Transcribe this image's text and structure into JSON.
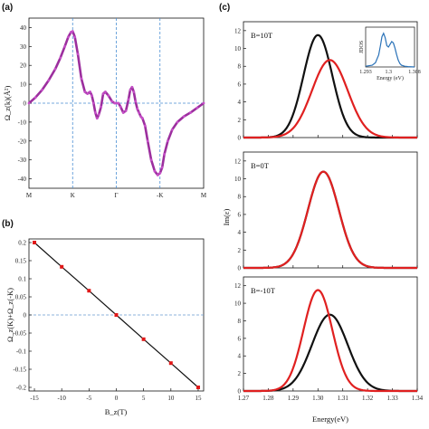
{
  "panels": {
    "a": "(a)",
    "b": "(b)",
    "c": "(c)"
  },
  "chart_data": [
    {
      "id": "a",
      "type": "line",
      "ylabel": "Ω_z(k)(Å²)",
      "ylim": [
        -45,
        45
      ],
      "yticks": [
        -40,
        -30,
        -20,
        -10,
        0,
        10,
        20,
        30,
        40
      ],
      "x_ticks": [
        "M",
        "K",
        "Γ",
        "-K",
        "M"
      ],
      "x_tick_positions": [
        0,
        1,
        2,
        3,
        4
      ],
      "vlines_at": [
        1,
        2,
        3
      ],
      "hline_at": 0,
      "colors": {
        "line": "#9c2f9e",
        "markers": "#c64fc8",
        "guides": "#4a8fd4"
      },
      "series": [
        {
          "x": [
            0.0,
            0.15,
            0.3,
            0.45,
            0.6,
            0.72,
            0.82,
            0.9,
            0.96,
            1.0,
            1.05,
            1.12,
            1.2,
            1.28,
            1.34,
            1.4,
            1.44,
            1.48,
            1.52,
            1.56,
            1.6,
            1.65,
            1.7,
            1.75,
            1.82,
            1.9,
            1.96,
            2.0,
            2.05,
            2.1,
            2.16,
            2.22,
            2.28,
            2.32,
            2.36,
            2.4,
            2.44,
            2.48,
            2.52,
            2.56,
            2.6,
            2.66,
            2.72,
            2.8,
            2.88,
            2.95,
            3.0,
            3.05,
            3.1,
            3.18,
            3.28,
            3.4,
            3.55,
            3.7,
            3.85,
            4.0
          ],
          "y": [
            0,
            3,
            7,
            12,
            18,
            24,
            30,
            35,
            37.5,
            38,
            35,
            26,
            13,
            6,
            5,
            6,
            4,
            0,
            -5,
            -8,
            -6,
            -2,
            5,
            6,
            4,
            1,
            0,
            0,
            0,
            -2,
            -5,
            -4,
            2,
            7,
            8.5,
            6,
            1,
            -3,
            -5,
            -7,
            -8,
            -12,
            -20,
            -30,
            -36,
            -38,
            -37,
            -34,
            -27,
            -20,
            -14,
            -10,
            -7,
            -5,
            -2.5,
            0
          ]
        }
      ]
    },
    {
      "id": "b",
      "type": "line",
      "xlabel": "B_z(T)",
      "ylabel": "Ω_z(K)+Ω_z(-K)",
      "xlim": [
        -16,
        16
      ],
      "ylim": [
        -0.21,
        0.21
      ],
      "xticks": [
        -15,
        -10,
        -5,
        0,
        5,
        10,
        15
      ],
      "yticks": [
        -0.2,
        -0.15,
        -0.1,
        -0.05,
        0,
        0.05,
        0.1,
        0.15,
        0.2
      ],
      "ytick_labels": [
        "-0.2",
        "-0.15",
        "-0.1",
        "-0.05",
        "0",
        "0.05",
        "0.1",
        "0.15",
        "0.2"
      ],
      "hline_at": 0,
      "colors": {
        "line": "#111111",
        "markers": "#e01818",
        "guide": "#6a9bd0"
      },
      "series": [
        {
          "x": [
            -15,
            -10,
            -5,
            0,
            5,
            10,
            15
          ],
          "y": [
            0.2,
            0.133,
            0.067,
            0,
            -0.067,
            -0.133,
            -0.2
          ]
        }
      ]
    },
    {
      "id": "c",
      "type": "line",
      "xlabel": "Energy(eV)",
      "ylabel": "Im(ε)",
      "xlim": [
        1.27,
        1.34
      ],
      "xticks": [
        1.27,
        1.28,
        1.29,
        1.3,
        1.31,
        1.32,
        1.33,
        1.34
      ],
      "xtick_labels": [
        "1.27",
        "1.28",
        "1.29",
        "1.30",
        "1.31",
        "1.32",
        "1.33",
        "1.34"
      ],
      "ylim": [
        0,
        13
      ],
      "yticks": [
        0,
        2,
        4,
        6,
        8,
        10,
        12
      ],
      "colors": {
        "black": "#111111",
        "red": "#e02020",
        "inset": "#2a72b8"
      },
      "subplots": [
        {
          "label": "B=10T",
          "series": [
            {
              "color": "black",
              "center": 1.3,
              "peak": 11.5,
              "width": 0.0058
            },
            {
              "color": "red",
              "center": 1.3048,
              "peak": 8.7,
              "width": 0.0072
            }
          ],
          "inset": {
            "xlabel": "Energy (eV)",
            "ylabel": "JDOS",
            "xlim": [
              1.293,
              1.308
            ],
            "xtick_labels": [
              "1.293",
              "1.3",
              "1.308"
            ],
            "xtick_values": [
              1.293,
              1.3,
              1.308
            ],
            "curve": {
              "x": [
                1.293,
                1.295,
                1.296,
                1.297,
                1.2975,
                1.298,
                1.2985,
                1.299,
                1.2995,
                1.3,
                1.3005,
                1.301,
                1.3015,
                1.302,
                1.3025,
                1.303,
                1.3035,
                1.304,
                1.305,
                1.306,
                1.308
              ],
              "y": [
                0.02,
                0.05,
                0.12,
                0.35,
                0.6,
                0.88,
                0.98,
                0.85,
                0.62,
                0.58,
                0.66,
                0.74,
                0.7,
                0.55,
                0.36,
                0.2,
                0.1,
                0.05,
                0.02,
                0.01,
                0.0
              ]
            }
          }
        },
        {
          "label": "B=0T",
          "series": [
            {
              "color": "black",
              "center": 1.3022,
              "peak": 10.8,
              "width": 0.0062
            },
            {
              "color": "red",
              "center": 1.3022,
              "peak": 10.8,
              "width": 0.0062
            }
          ]
        },
        {
          "label": "B=-10T",
          "series": [
            {
              "color": "black",
              "center": 1.3048,
              "peak": 8.7,
              "width": 0.0072
            },
            {
              "color": "red",
              "center": 1.3,
              "peak": 11.5,
              "width": 0.0058
            }
          ]
        }
      ]
    }
  ]
}
